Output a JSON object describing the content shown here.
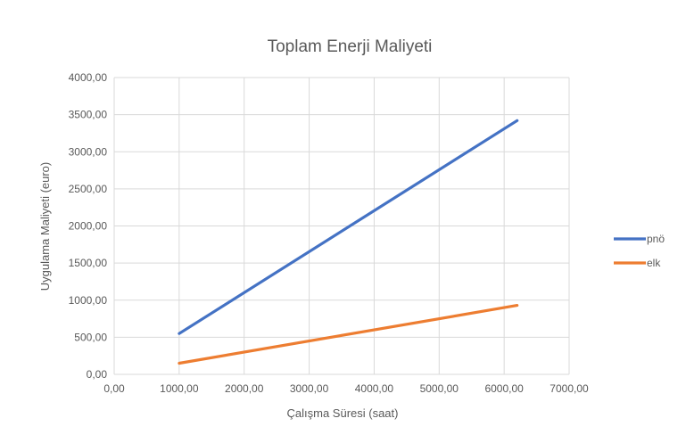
{
  "chart_data": {
    "type": "line",
    "title": "Toplam Enerji Maliyeti",
    "xlabel": "Çalışma Süresi (saat)",
    "ylabel": "Uygulama Maliyeti (euro)",
    "xlim": [
      0,
      7000
    ],
    "ylim": [
      0,
      4000
    ],
    "xticks": [
      0,
      1000,
      2000,
      3000,
      4000,
      5000,
      6000,
      7000
    ],
    "yticks": [
      0,
      500,
      1000,
      1500,
      2000,
      2500,
      3000,
      3500,
      4000
    ],
    "xtick_labels": [
      "0,00",
      "1000,00",
      "2000,00",
      "3000,00",
      "4000,00",
      "5000,00",
      "6000,00",
      "7000,00"
    ],
    "ytick_labels": [
      "0,00",
      "500,00",
      "1000,00",
      "1500,00",
      "2000,00",
      "2500,00",
      "3000,00",
      "3500,00",
      "4000,00"
    ],
    "grid": true,
    "legend_position": "right",
    "series": [
      {
        "name": "pnö",
        "color": "#4472C4",
        "x": [
          1000,
          6200
        ],
        "y": [
          550,
          3420
        ]
      },
      {
        "name": "elk",
        "color": "#ED7D31",
        "x": [
          1000,
          6200
        ],
        "y": [
          150,
          930
        ]
      }
    ]
  }
}
